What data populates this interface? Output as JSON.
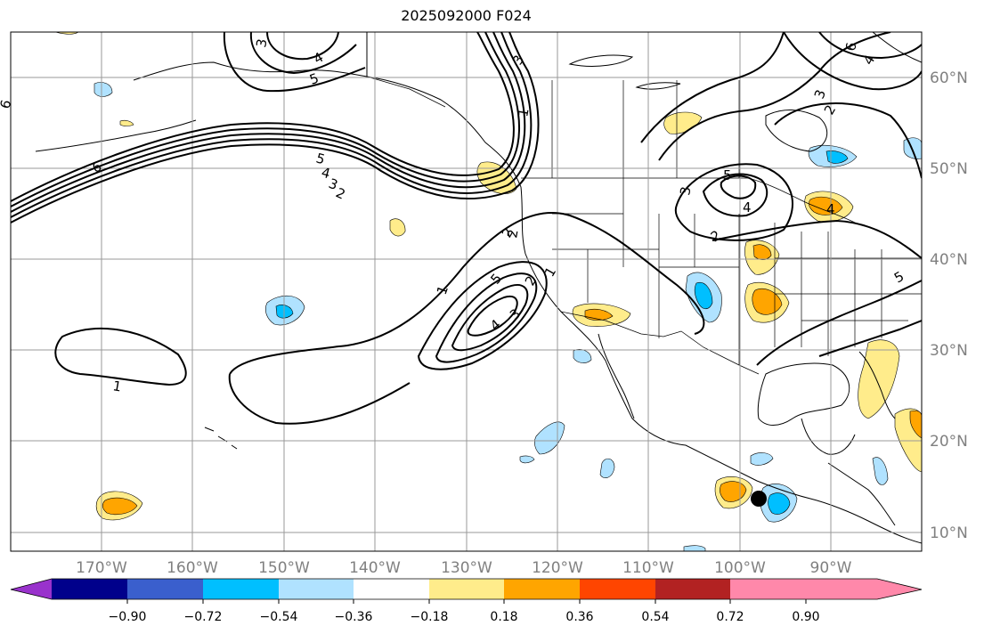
{
  "title": "2025092000 F024",
  "lat_labels": [
    "60°N",
    "50°N",
    "40°N",
    "30°N",
    "20°N",
    "10°N"
  ],
  "lon_labels": [
    "170°W",
    "160°W",
    "150°W",
    "140°W",
    "130°W",
    "120°W",
    "110°W",
    "100°W",
    "90°W"
  ],
  "colorbar": {
    "tick_labels": [
      "−0.90",
      "−0.72",
      "−0.54",
      "−0.36",
      "−0.18",
      "0.18",
      "0.36",
      "0.54",
      "0.72",
      "0.90"
    ],
    "colors": [
      "#9932cc",
      "#00008b",
      "#3a5fcd",
      "#00bfff",
      "#b0e2ff",
      "#ffffff",
      "#ffec8b",
      "#ffa500",
      "#ff4500",
      "#b22222",
      "#ff88aa"
    ]
  },
  "contour_labels": [
    "3",
    "4",
    "5",
    "6",
    "6",
    "5",
    "4",
    "3",
    "2",
    "1",
    "3",
    "2",
    "6",
    "4",
    "3",
    "2",
    "5",
    "4",
    "3",
    "2",
    "4",
    "1",
    "2",
    "1",
    "5",
    "4",
    "3",
    "2",
    "1",
    "5"
  ],
  "marker": "storm-center"
}
